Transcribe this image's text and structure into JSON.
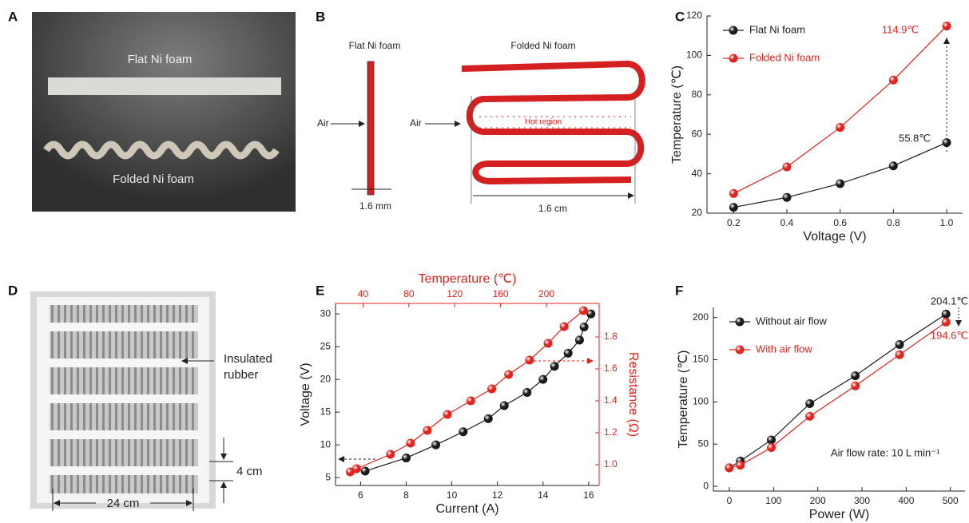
{
  "panels": {
    "A": {
      "letter": "A",
      "flat": "Flat Ni foam",
      "folded": "Folded Ni foam"
    },
    "B": {
      "letter": "B",
      "flat": "Flat Ni foam",
      "folded": "Folded Ni foam",
      "air_flat": "Air",
      "air_folded": "Air",
      "hot": "Hot region",
      "flat_size": "1.6 mm",
      "folded_size": "1.6 cm"
    },
    "D": {
      "letter": "D",
      "rubber": [
        "Insulated",
        "rubber"
      ],
      "height": "4 cm",
      "width": "24 cm"
    }
  },
  "chart_data": [
    {
      "type": "line",
      "panel": "C",
      "xlabel": "Voltage (V)",
      "ylabel": "Temperature (℃)",
      "x": [
        0.2,
        0.4,
        0.6,
        0.8,
        1.0
      ],
      "xlim": [
        0.1,
        1.06
      ],
      "xticks": [
        0.2,
        0.4,
        0.6,
        0.8,
        {
          "value": 1,
          "label": "1.0"
        }
      ],
      "ylim": [
        20,
        120
      ],
      "yticks": [
        20,
        40,
        60,
        80,
        100,
        120
      ],
      "legend": "upper left",
      "series": [
        {
          "name": "Flat Ni foam",
          "color": "#1a1a1a",
          "values": [
            23,
            28,
            35,
            44,
            55.8
          ]
        },
        {
          "name": "Folded Ni foam",
          "color": "#e0241f",
          "values": [
            30,
            43.5,
            63.5,
            87.5,
            114.9
          ]
        }
      ],
      "annotations": [
        "114.9℃",
        "55.8℃"
      ]
    },
    {
      "type": "line",
      "panel": "E",
      "xlabel": "Current (A)",
      "x2label": "Temperature (℃)",
      "ylabel": "Voltage (V)",
      "y2label": "Resistance (Ω)",
      "xlim": [
        4.9,
        16.46
      ],
      "xticks": [
        6,
        8,
        10,
        12,
        14,
        16
      ],
      "x2lim": [
        16,
        246
      ],
      "x2ticks": [
        40,
        80,
        120,
        160,
        200
      ],
      "ylim": [
        3.8,
        31.6
      ],
      "yticks": [
        5,
        10,
        15,
        20,
        25,
        30
      ],
      "y2lim": [
        0.87,
        2.01
      ],
      "y2ticks": [
        {
          "value": 1,
          "label": "1.0"
        },
        1.2,
        1.4,
        1.6,
        1.8
      ],
      "series": [
        {
          "color": "#1a1a1a",
          "x": [
            6.2,
            8.0,
            9.3,
            10.5,
            11.6,
            12.3,
            13.3,
            14.0,
            14.5,
            15.1,
            15.6,
            15.8,
            16.1
          ],
          "values": [
            6,
            8,
            10,
            12,
            14,
            16,
            18,
            20,
            22,
            24,
            26,
            28,
            30
          ]
        },
        {
          "color": "#e0241f",
          "axis": "y2",
          "x": [
            28.8,
            34.4,
            63.9,
            81.4,
            96.1,
            113.6,
            134,
            152.3,
            167,
            185.3,
            201.4,
            215.4,
            232.3
          ],
          "values": [
            0.955,
            0.975,
            1.065,
            1.135,
            1.215,
            1.315,
            1.4,
            1.475,
            1.565,
            1.655,
            1.76,
            1.865,
            1.965
          ]
        }
      ]
    },
    {
      "type": "line",
      "panel": "F",
      "xlabel": "Power (W)",
      "ylabel": "Temperature (℃)",
      "x": [
        0,
        25,
        95,
        182,
        285,
        385,
        490
      ],
      "xlim": [
        -36,
        533
      ],
      "xticks": [
        0,
        100,
        200,
        300,
        400,
        500
      ],
      "ylim": [
        -5.6,
        212
      ],
      "yticks": [
        0,
        50,
        100,
        150,
        200
      ],
      "legend": "upper left",
      "series": [
        {
          "name": "Without air flow",
          "color": "#1a1a1a",
          "values": [
            22,
            30,
            55,
            98,
            131,
            168,
            204.1
          ]
        },
        {
          "name": "With air flow",
          "color": "#e0241f",
          "values": [
            22,
            25,
            46,
            83,
            119,
            156,
            194.6
          ]
        }
      ],
      "annotations": [
        "204.1℃",
        "194.6℃",
        "Air flow rate: 10 L min⁻¹"
      ]
    }
  ]
}
